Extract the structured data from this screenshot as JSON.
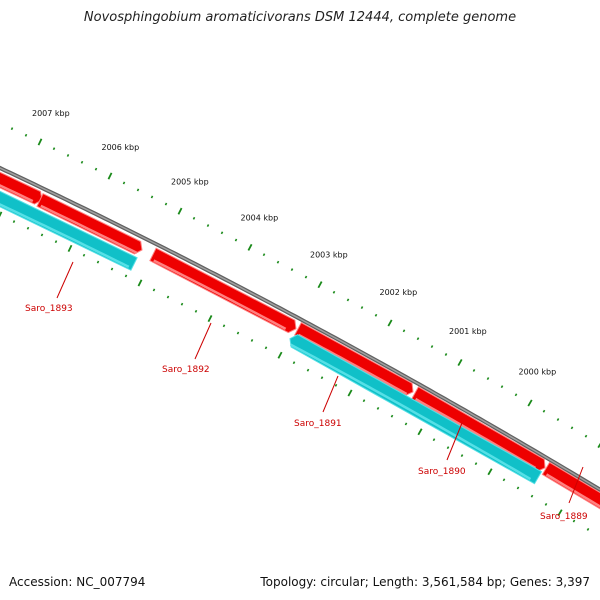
{
  "title": "Novosphingobium aromaticivorans DSM 12444, complete genome",
  "footer": {
    "accession": "Accession: NC_007794",
    "topology": "Topology: circular; Length: 3,561,584 bp; Genes: 3,397"
  },
  "colors": {
    "backbone": "#7f7f7f",
    "forward_gene": "#ee0000",
    "reverse_gene": "#10c0c8",
    "tick": "#1a8a1a",
    "label": "#cc0000",
    "leader": "#cc0000"
  },
  "ruler": [
    {
      "label": "2007 kbp"
    },
    {
      "label": "2006 kbp"
    },
    {
      "label": "2005 kbp"
    },
    {
      "label": "2004 kbp"
    },
    {
      "label": "2003 kbp"
    },
    {
      "label": "2002 kbp"
    },
    {
      "label": "2001 kbp"
    },
    {
      "label": "2000 kbp"
    }
  ],
  "genes": [
    {
      "name": "Saro_1893",
      "strand": "reverse"
    },
    {
      "name": "Saro_1892",
      "strand": "forward"
    },
    {
      "name": "Saro_1891",
      "strand": "reverse"
    },
    {
      "name": "Saro_1890",
      "strand": "forward"
    },
    {
      "name": "Saro_1889",
      "strand": "forward"
    }
  ]
}
